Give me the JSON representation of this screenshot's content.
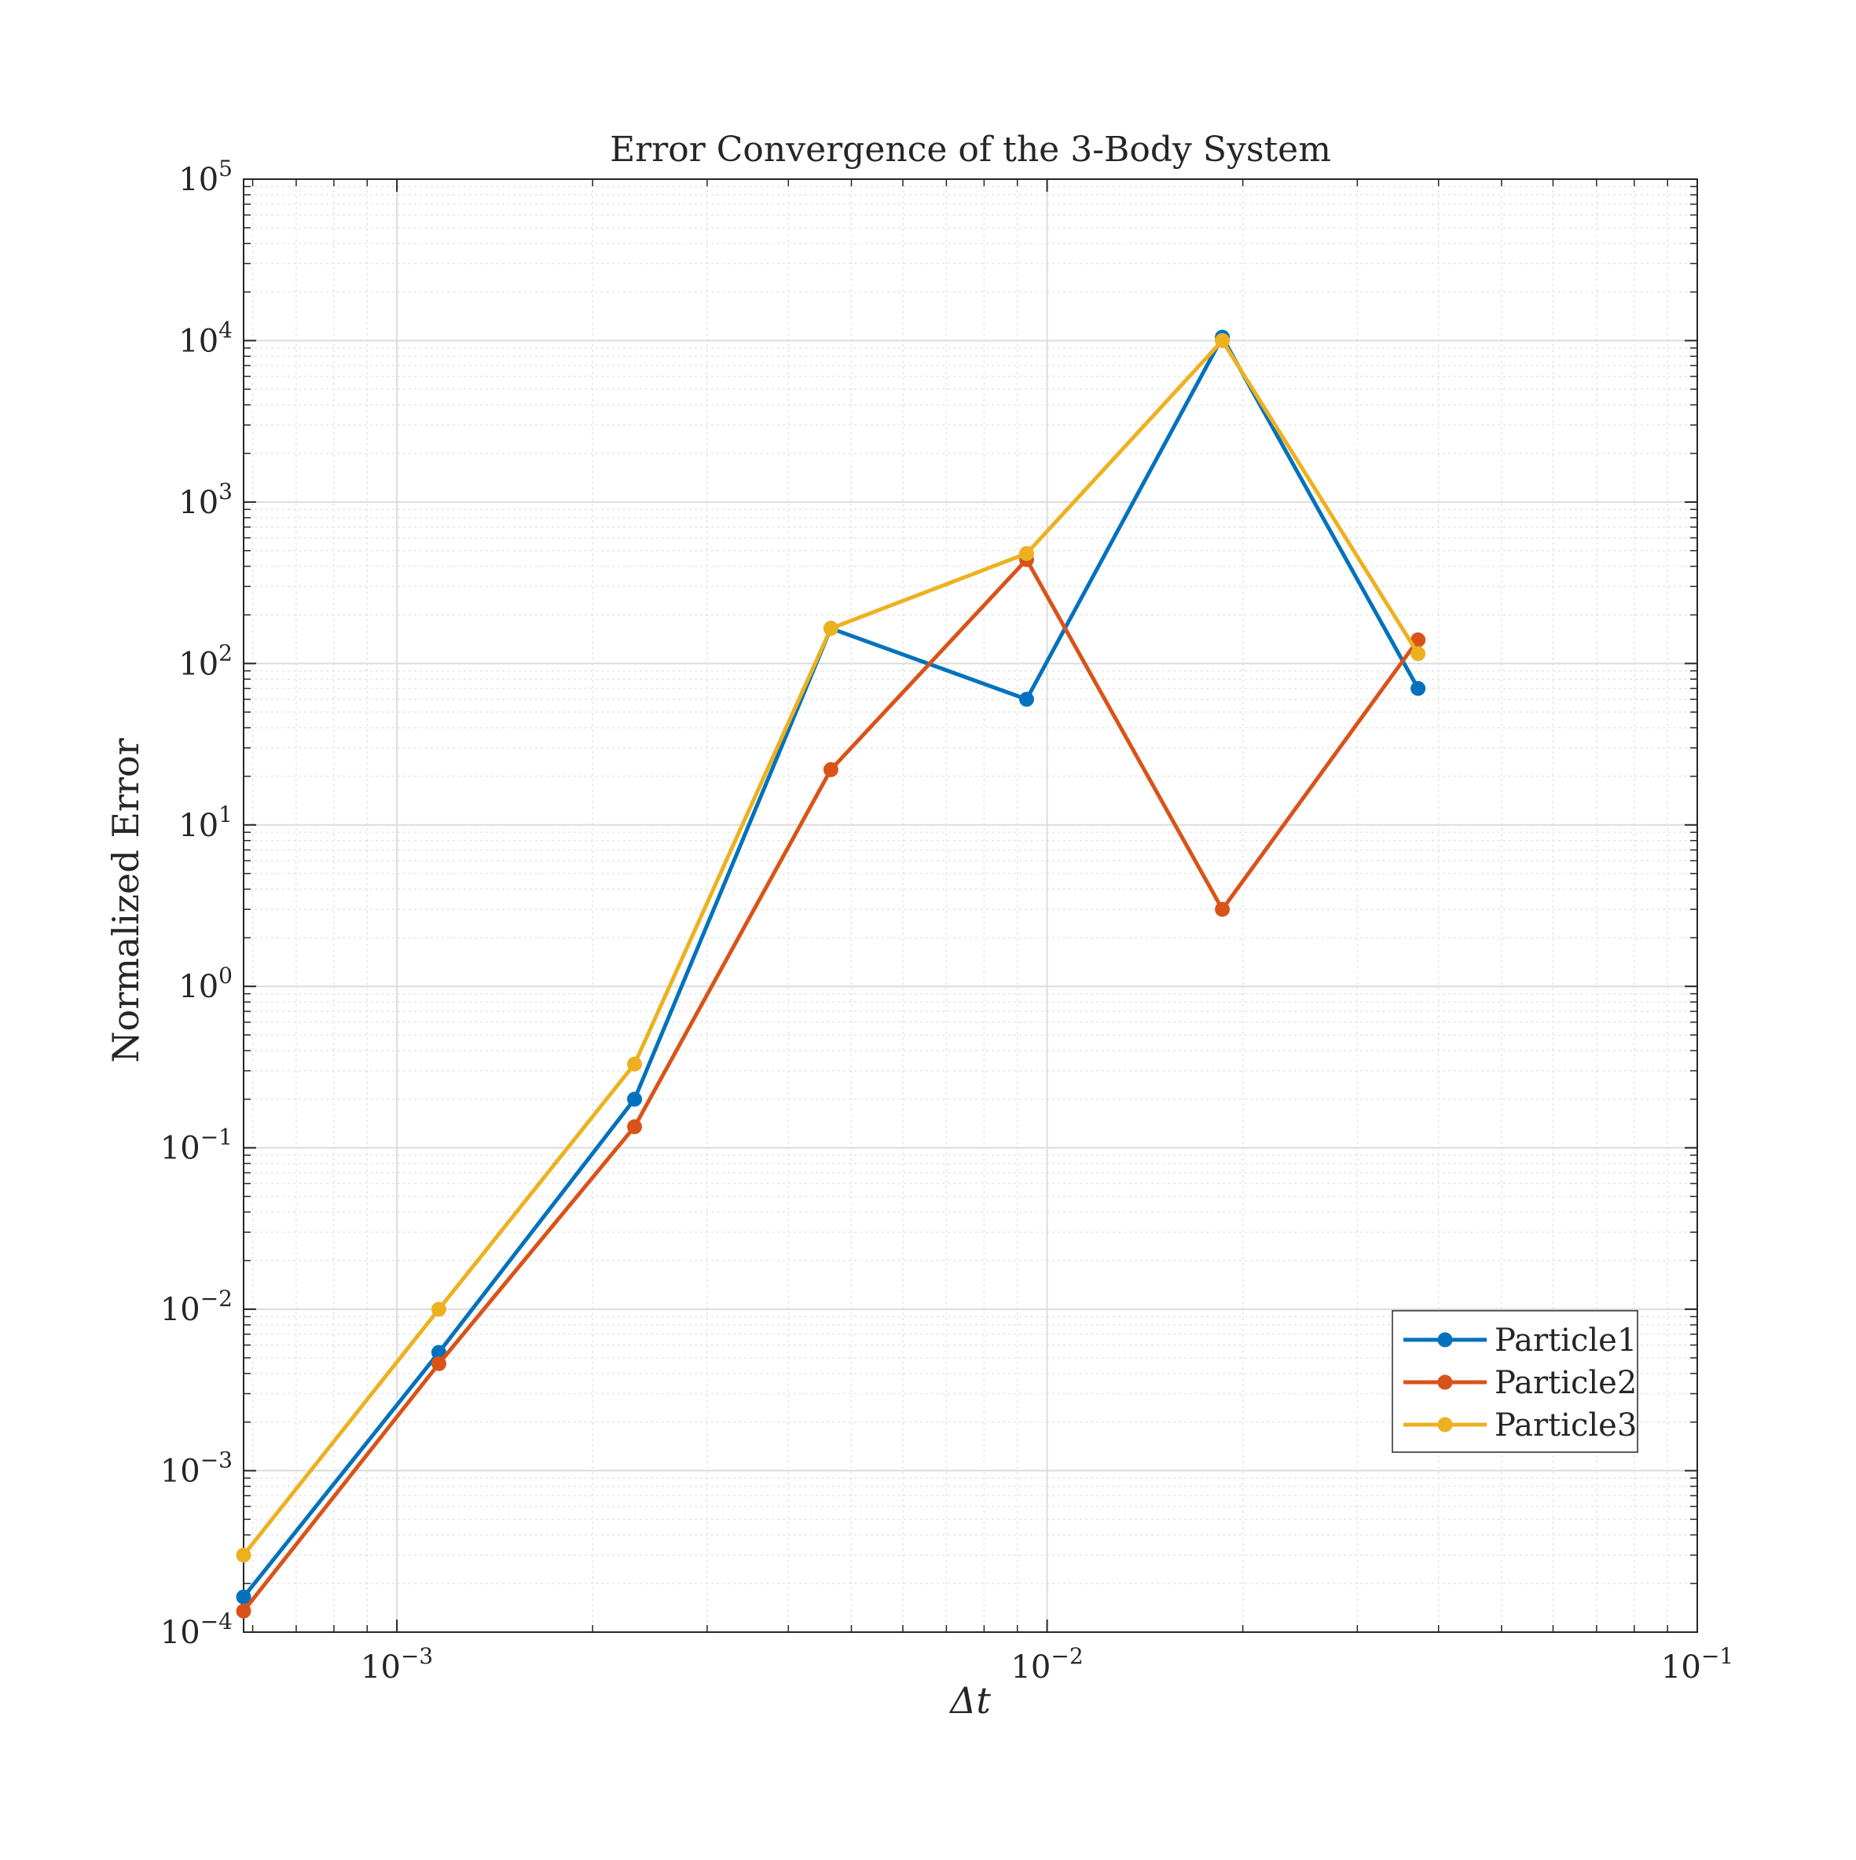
{
  "chart_data": {
    "type": "line",
    "title": "Error Convergence of the 3-Body System",
    "xlabel": "Δt",
    "ylabel": "Normalized Error",
    "xscale": "log",
    "yscale": "log",
    "xlim": [
      0.000581,
      0.1
    ],
    "ylim": [
      0.0001,
      100000
    ],
    "grid": true,
    "minor_grid": true,
    "legend_position": "lower-right",
    "x": [
      0.000581,
      0.00116,
      0.00232,
      0.00465,
      0.0093,
      0.0186,
      0.0372
    ],
    "series": [
      {
        "name": "Particle1",
        "color": "#0072BD",
        "values": [
          0.000165,
          0.0054,
          0.2,
          165,
          60,
          10500,
          70
        ]
      },
      {
        "name": "Particle2",
        "color": "#D95319",
        "values": [
          0.000135,
          0.0046,
          0.135,
          22,
          440,
          3.0,
          140
        ]
      },
      {
        "name": "Particle3",
        "color": "#EDB120",
        "values": [
          0.0003,
          0.01,
          0.33,
          165,
          480,
          10000,
          115
        ]
      }
    ],
    "x_ticks": [
      {
        "value": 0.001,
        "base": "10",
        "exp": "−3"
      },
      {
        "value": 0.01,
        "base": "10",
        "exp": "−2"
      },
      {
        "value": 0.1,
        "base": "10",
        "exp": "−1"
      }
    ],
    "y_ticks": [
      {
        "value": 0.0001,
        "base": "10",
        "exp": "−4"
      },
      {
        "value": 0.001,
        "base": "10",
        "exp": "−3"
      },
      {
        "value": 0.01,
        "base": "10",
        "exp": "−2"
      },
      {
        "value": 0.1,
        "base": "10",
        "exp": "−1"
      },
      {
        "value": 1,
        "base": "10",
        "exp": "0"
      },
      {
        "value": 10,
        "base": "10",
        "exp": "1"
      },
      {
        "value": 100,
        "base": "10",
        "exp": "2"
      },
      {
        "value": 1000,
        "base": "10",
        "exp": "3"
      },
      {
        "value": 10000,
        "base": "10",
        "exp": "4"
      },
      {
        "value": 100000,
        "base": "10",
        "exp": "5"
      }
    ]
  }
}
